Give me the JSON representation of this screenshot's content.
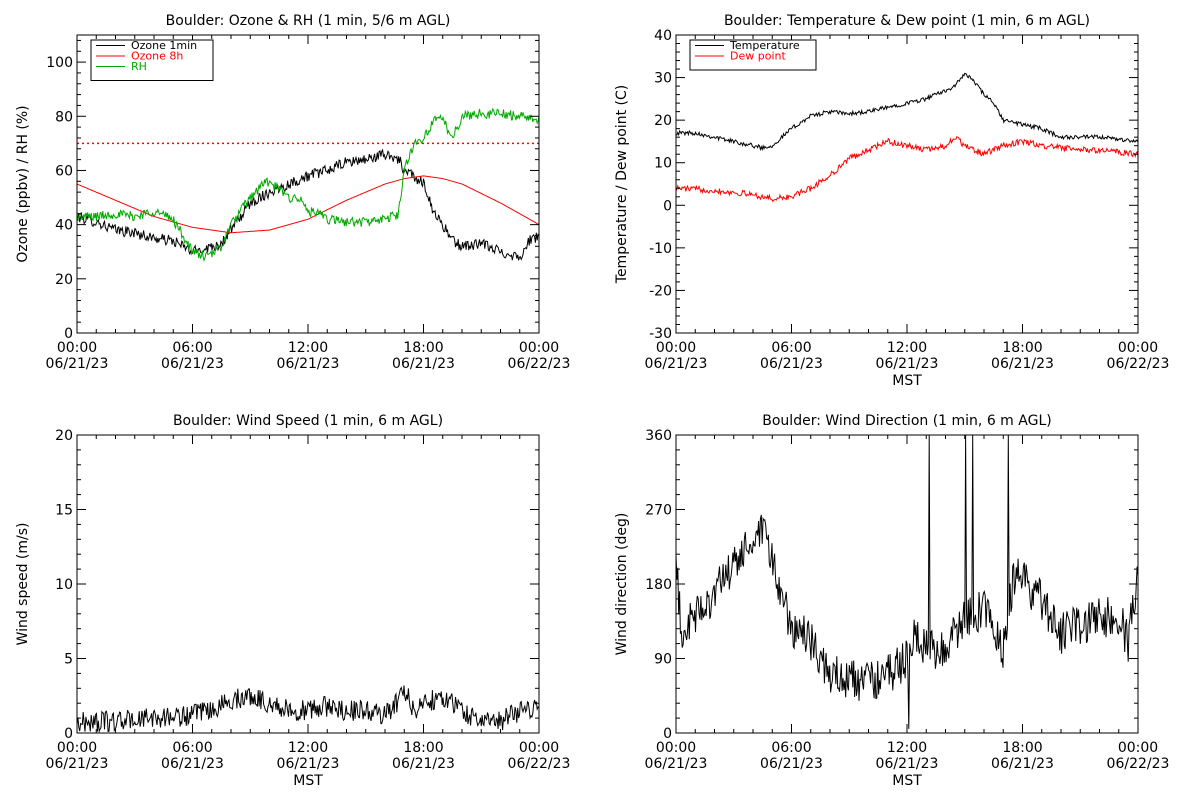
{
  "charts": [
    {
      "type": "line",
      "title": "Boulder: Ozone & RH (1 min, 5/6 m AGL)",
      "ylabel": "Ozone (ppbv) / RH (%)",
      "xlabel": "",
      "xlim": [
        0,
        24
      ],
      "ylim": [
        0,
        110
      ],
      "yticks": [
        0,
        20,
        40,
        60,
        80,
        100
      ],
      "xticks": [
        {
          "time": "00:00",
          "date": "06/21/23"
        },
        {
          "time": "06:00",
          "date": "06/21/23"
        },
        {
          "time": "12:00",
          "date": "06/21/23"
        },
        {
          "time": "18:00",
          "date": "06/21/23"
        },
        {
          "time": "00:00",
          "date": "06/22/23"
        }
      ],
      "legend": "top-left",
      "reference_line": {
        "y": 70,
        "color": "#ff0000",
        "style": "dotted"
      },
      "series": [
        {
          "name": "Ozone 1min",
          "color": "#000000",
          "noise": 2.0,
          "x": [
            0,
            1,
            2,
            3,
            4,
            5,
            6,
            7,
            7.5,
            8,
            9,
            10,
            11,
            12,
            13,
            14,
            15,
            16,
            16.8,
            17,
            17.3,
            17.6,
            18,
            18.5,
            19,
            19.5,
            20,
            21,
            22,
            23,
            23.5,
            24
          ],
          "y": [
            43,
            41,
            38,
            37,
            35,
            34,
            30,
            32,
            33,
            38,
            48,
            52,
            55,
            58,
            60,
            63,
            64,
            66,
            64,
            58,
            60,
            56,
            56,
            45,
            40,
            34,
            32,
            33,
            30,
            28,
            34,
            36
          ]
        },
        {
          "name": "Ozone 8h",
          "color": "#ff0000",
          "noise": 0,
          "x": [
            0,
            2,
            4,
            6,
            8,
            10,
            12,
            14,
            16,
            17,
            18,
            19,
            20,
            22,
            24
          ],
          "y": [
            55,
            49,
            43,
            39,
            37,
            38,
            42,
            49,
            55,
            57,
            58,
            57,
            55,
            48,
            40
          ]
        },
        {
          "name": "RH",
          "color": "#00aa00",
          "noise": 1.8,
          "x": [
            0,
            1,
            2,
            3,
            4,
            5,
            6,
            6.8,
            7.5,
            8,
            8.5,
            9,
            9.8,
            10.5,
            11,
            11.5,
            12,
            12.5,
            13,
            14,
            15,
            16,
            16.7,
            17,
            17.5,
            18,
            18.5,
            19,
            19.5,
            20,
            21,
            22,
            23,
            24
          ],
          "y": [
            43,
            43,
            44,
            43,
            45,
            42,
            30,
            28,
            32,
            40,
            45,
            50,
            56,
            53,
            50,
            50,
            45,
            44,
            42,
            41,
            41,
            42,
            44,
            60,
            70,
            72,
            78,
            79,
            72,
            80,
            81,
            81,
            80,
            79
          ]
        }
      ]
    },
    {
      "type": "line",
      "title": "Boulder: Temperature & Dew point (1 min, 6 m AGL)",
      "ylabel": "Temperature / Dew point (C)",
      "xlabel": "MST",
      "xlim": [
        0,
        24
      ],
      "ylim": [
        -30,
        40
      ],
      "yticks": [
        -30,
        -20,
        -10,
        0,
        10,
        20,
        30,
        40
      ],
      "xticks": [
        {
          "time": "00:00",
          "date": "06/21/23"
        },
        {
          "time": "06:00",
          "date": "06/21/23"
        },
        {
          "time": "12:00",
          "date": "06/21/23"
        },
        {
          "time": "18:00",
          "date": "06/21/23"
        },
        {
          "time": "00:00",
          "date": "06/22/23"
        }
      ],
      "legend": "top-left",
      "series": [
        {
          "name": "Temperature",
          "color": "#000000",
          "noise": 0.5,
          "x": [
            0,
            1,
            2,
            3,
            4,
            4.5,
            5,
            6,
            7,
            8,
            9,
            10,
            11,
            12,
            13,
            13.5,
            14,
            14.5,
            15,
            15.5,
            16,
            16.5,
            17,
            18,
            19,
            20,
            21,
            22,
            23,
            24
          ],
          "y": [
            17,
            17,
            16,
            15,
            14,
            13.5,
            14,
            18,
            21,
            22,
            21.5,
            22,
            23,
            24,
            25,
            26,
            27,
            28,
            31,
            29,
            26,
            24,
            20,
            19,
            18,
            16,
            16,
            16,
            15.5,
            15
          ]
        },
        {
          "name": "Dew point",
          "color": "#ff0000",
          "noise": 0.7,
          "x": [
            0,
            1,
            2,
            3,
            4,
            5,
            6,
            7,
            8,
            9,
            10,
            11,
            12,
            13,
            14,
            14.5,
            15,
            15.5,
            16,
            16.5,
            17,
            18,
            19,
            20,
            21,
            22,
            23,
            24
          ],
          "y": [
            4,
            3.8,
            3.5,
            3,
            2.5,
            1.5,
            2,
            4,
            7,
            11,
            13,
            15,
            14,
            13,
            14,
            16,
            14,
            13,
            12,
            13,
            14,
            15,
            14,
            13.5,
            13,
            13,
            12.5,
            12
          ]
        }
      ]
    },
    {
      "type": "line",
      "title": "Boulder: Wind Speed (1 min, 6 m AGL)",
      "ylabel": "Wind speed (m/s)",
      "xlabel": "MST",
      "xlim": [
        0,
        24
      ],
      "ylim": [
        0,
        20
      ],
      "yticks": [
        0,
        5,
        10,
        15,
        20
      ],
      "xticks": [
        {
          "time": "00:00",
          "date": "06/21/23"
        },
        {
          "time": "06:00",
          "date": "06/21/23"
        },
        {
          "time": "12:00",
          "date": "06/21/23"
        },
        {
          "time": "18:00",
          "date": "06/21/23"
        },
        {
          "time": "00:00",
          "date": "06/22/23"
        }
      ],
      "series": [
        {
          "name": "",
          "color": "#000000",
          "noise": 0.7,
          "x": [
            0,
            2,
            4,
            6,
            7,
            8,
            9,
            10,
            11,
            12,
            13,
            14,
            15,
            16,
            16.5,
            17,
            17.5,
            18,
            19,
            20,
            21,
            22,
            23,
            24
          ],
          "y": [
            0.7,
            0.8,
            1.0,
            1.2,
            1.5,
            2.2,
            2.5,
            2.0,
            1.5,
            1.5,
            1.8,
            1.5,
            1.5,
            1.2,
            1.8,
            3.0,
            1.5,
            2.0,
            2.5,
            1.5,
            0.8,
            0.8,
            1.5,
            1.8
          ]
        }
      ]
    },
    {
      "type": "line",
      "title": "Boulder: Wind Direction (1 min, 6 m AGL)",
      "ylabel": "Wind direction (deg)",
      "xlabel": "MST",
      "xlim": [
        0,
        24
      ],
      "ylim": [
        0,
        360
      ],
      "yticks": [
        0,
        90,
        180,
        270,
        360
      ],
      "xticks": [
        {
          "time": "00:00",
          "date": "06/21/23"
        },
        {
          "time": "06:00",
          "date": "06/21/23"
        },
        {
          "time": "12:00",
          "date": "06/21/23"
        },
        {
          "time": "18:00",
          "date": "06/21/23"
        },
        {
          "time": "00:00",
          "date": "06/22/23"
        }
      ],
      "series": [
        {
          "name": "",
          "color": "#000000",
          "noise": 25,
          "x": [
            0,
            0.3,
            1,
            2,
            3,
            3.5,
            4,
            4.5,
            5,
            5.5,
            6,
            6.5,
            7,
            8,
            9,
            10,
            11,
            12,
            12.5,
            13,
            14,
            15,
            16,
            16.5,
            17,
            17.5,
            18,
            18.5,
            19,
            19.5,
            20,
            21,
            22,
            23,
            23.5,
            24
          ],
          "y": [
            200,
            120,
            140,
            170,
            200,
            220,
            230,
            240,
            210,
            160,
            130,
            120,
            110,
            70,
            65,
            60,
            70,
            90,
            120,
            100,
            100,
            140,
            150,
            120,
            100,
            180,
            200,
            170,
            160,
            140,
            120,
            130,
            140,
            140,
            110,
            200
          ]
        }
      ]
    }
  ]
}
